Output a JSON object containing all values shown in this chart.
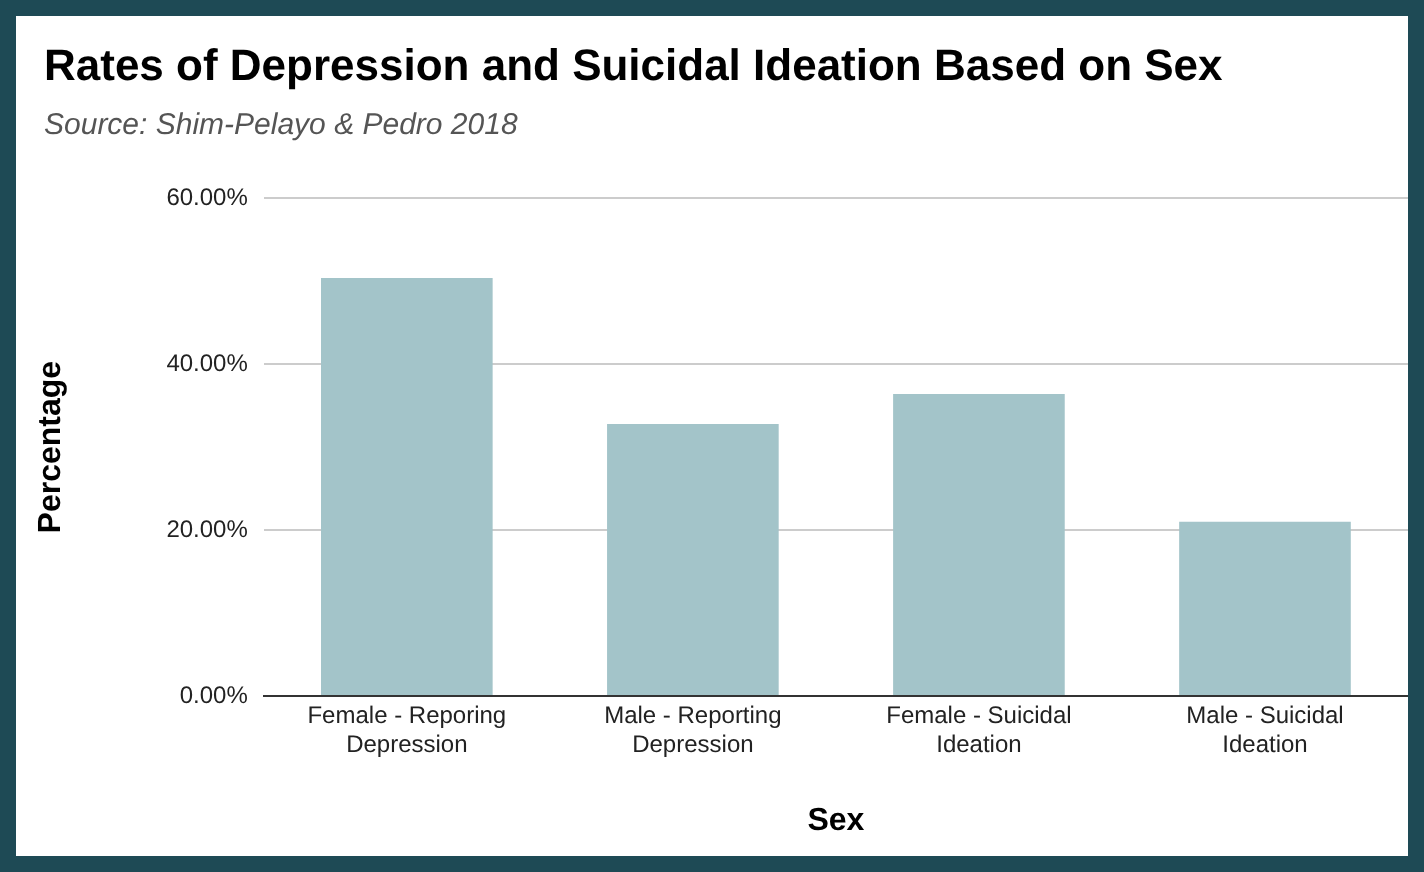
{
  "chart_data": {
    "type": "bar",
    "title": "Rates of Depression and Suicidal Ideation Based on Sex",
    "subtitle": "Source: Shim-Pelayo & Pedro 2018",
    "xlabel": "Sex",
    "ylabel": "Percentage",
    "categories": [
      "Female - Reporing Depression",
      "Male - Reporting Depression",
      "Female - Suicidal Ideation",
      "Male - Suicidal Ideation"
    ],
    "values": [
      50.4,
      32.8,
      36.4,
      21.0
    ],
    "color": "#a3c4c9",
    "ylim": [
      0,
      60
    ],
    "yticks": [
      {
        "value": 0,
        "label": "0.00%"
      },
      {
        "value": 20,
        "label": "20.00%"
      },
      {
        "value": 40,
        "label": "40.00%"
      },
      {
        "value": 60,
        "label": "60.00%"
      }
    ],
    "grid": "y",
    "legend": false
  }
}
